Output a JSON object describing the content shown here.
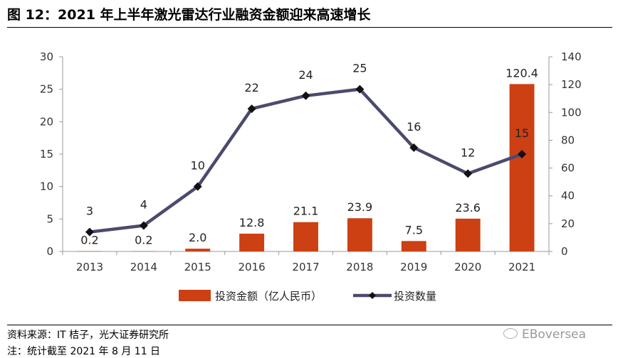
{
  "header": {
    "title": "图 12：2021 年上半年激光雷达行业融资金额迎来高速增长"
  },
  "footer": {
    "source": "资料来源：IT 桔子，光大证券研究所",
    "note": "注：统计截至 2021 年 8 月 11 日",
    "watermark": "EBoversea"
  },
  "chart_data": {
    "type": "bar",
    "categories": [
      "2013",
      "2014",
      "2015",
      "2016",
      "2017",
      "2018",
      "2019",
      "2020",
      "2021"
    ],
    "series": [
      {
        "name": "投资金额（亿人民币）",
        "type": "bar",
        "axis": "right",
        "color": "#cc4014",
        "values": [
          0.2,
          0.2,
          2.0,
          12.8,
          21.1,
          23.9,
          7.5,
          23.6,
          120.4
        ],
        "labels": [
          "0.2",
          "0.2",
          "2.0",
          "12.8",
          "21.1",
          "23.9",
          "7.5",
          "23.6",
          "120.4"
        ]
      },
      {
        "name": "投资数量",
        "type": "line",
        "axis": "left",
        "color": "#4b4a6e",
        "values": [
          3,
          4,
          10,
          22,
          24,
          25,
          16,
          12,
          15
        ],
        "labels": [
          "3",
          "4",
          "10",
          "22",
          "24",
          "25",
          "16",
          "12",
          "15"
        ]
      }
    ],
    "y_left": {
      "ylim": [
        0,
        30
      ],
      "ticks": [
        0,
        5,
        10,
        15,
        20,
        25,
        30
      ]
    },
    "y_right": {
      "ylim": [
        0,
        140
      ],
      "ticks": [
        0,
        20,
        40,
        60,
        80,
        100,
        120,
        140
      ]
    },
    "grid": false,
    "legend": "bottom"
  }
}
